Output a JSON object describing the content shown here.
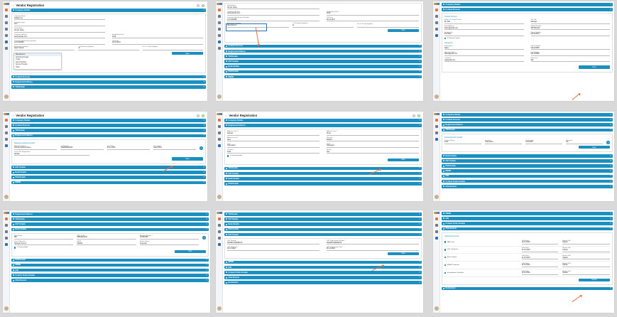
{
  "app": {
    "title": "Vendor Registration",
    "back": "‹"
  },
  "sections": {
    "company": "Company Details",
    "contact": "Contact Persons",
    "registered": "Registered Address",
    "tin": "TIN Details",
    "gst": "GST Details",
    "bank": "Bank Details",
    "pan": "PAN Details",
    "msme": "MSME",
    "cin": "CIN",
    "contact_points": "Contact Points Details",
    "attachments": "Attachments",
    "declaration": "Declaration",
    "upload": "Upload Documents",
    "vat": "VAT Details",
    "fin": "Financial Details",
    "cert": "Certifications",
    "other": "Other Details"
  },
  "company": {
    "name_label": "Company Name *",
    "name_value": "AdiEpic Ltd",
    "type_label": "Company Type *",
    "type_value": "Firm",
    "brand_label": "Brand Name",
    "brand_value": "Vendor Name",
    "website_label": "Company Website",
    "website_value": "www.website.com",
    "est_label": "Established Year *",
    "est_value": "2018",
    "corp_label": "Corporate Identification Number",
    "corp_value": "L21 8L90989",
    "cin_label": "CIN Date",
    "cin_value": "02-10-2021",
    "cat_label": "Enterprise Category *",
    "cat_value": "Select Option",
    "emp_label": "# Of Existing Suppliers",
    "emp_value": "12",
    "cert_label": "Do Or Certify Supplier",
    "save": "Save"
  },
  "dropdown": [
    "Manufacturer",
    "Authorized Dealer",
    "Trader",
    "Sole Proprietor",
    "Service Provider",
    "Other"
  ],
  "p3": {
    "contact_title": "Contact Persons",
    "rows": [
      {
        "l1": "Name Of Contact Person",
        "v1": "Mr. Rao",
        "l2": "Job Title",
        "v2": "Manager"
      },
      {
        "l1": "Email Address",
        "v1": "admin@gmail.com",
        "l2": "Mobile Number",
        "v2": "9876543210"
      },
      {
        "l1": "Designation",
        "v1": "Purchase",
        "l2": "Phone Number",
        "v2": "040 223344"
      },
      {
        "l1": "Department",
        "v1": "Sales",
        "l2": "Office Number",
        "v2": "040 223355"
      },
      {
        "l1": "Alternate Email",
        "v1": "sales@gmail.com",
        "l2": "Fax Number",
        "v2": "040 223366"
      },
      {
        "l1": "Cc Email",
        "v1": "cc@gmail.com",
        "l2": "Extension",
        "v2": "204"
      }
    ],
    "cat_title": "Categories",
    "primary": "Is Primary Contact",
    "next": "Next"
  },
  "p4": {
    "sub": "Registered Address Details",
    "name_label": "Registered Name",
    "name_value": "Primary Address Name",
    "gst_label": "Gst Number",
    "gst_value": "12ABCDE3456F",
    "start_label": "Start Date",
    "start_value": "01-01-2022",
    "desc_label": "Description",
    "desc_value": "Head Office",
    "proof_label": "Local GST Registration",
    "proof_value": "Upload",
    "save": "Save"
  },
  "p5": {
    "a1_label": "Address Line 1 *",
    "a1_value": "Address",
    "a2_label": "Address Line 2",
    "a2_value": "Street",
    "a3_label": "Address Line 3",
    "a3_value": "Area",
    "pin_label": "Pincode *",
    "pin_value": "500001",
    "city_label": "City *",
    "city_value": "Hyderabad",
    "state_label": "State *",
    "state_value": "Telangana",
    "country_label": "Country *",
    "country_value": "India",
    "dist_label": "District",
    "dist_value": "Hyd",
    "same": "Is Communication",
    "save": "Save"
  },
  "p6": {
    "sub": "Tax Registration Details",
    "t1_label": "Country Name",
    "t1_value": "India",
    "t2_label": "Location",
    "t2_value": "Hyderabad",
    "t3_label": "Tax Number",
    "t3_value": "TIN12345",
    "t4_label": "Remarks",
    "t4_value": "NA",
    "save": "Save"
  },
  "p7": {
    "holder_label": "Bank Name *",
    "holder_value": "SBI",
    "ifsc_label": "IFSC Code *",
    "ifsc_value": "SBIN0001234",
    "acc_label": "Account Number *",
    "acc_value": "123456789",
    "type_label": "Type Of Account",
    "type_value": "Savings Account",
    "micr_label": "MICR",
    "micr_value": "500002",
    "branch_label": "Branch Name *",
    "branch_value": "Ameerpet",
    "primary": "Is Primary Bank",
    "save": "Save"
  },
  "p8": {
    "gst1_label": "GST Number *",
    "gst1_value": "36AABCU9603R1ZX",
    "gst2_label": "GST Registration Number *",
    "gst2_value": "36AABCU9603R1ZX",
    "gst3_label": "GST Reg Date *",
    "gst3_value": "01-01-2020",
    "gst4_label": "GST Registration Date *",
    "gst4_value": "01-01-2020",
    "save": "Save"
  },
  "p9": {
    "sub": "Upload Documents",
    "items": [
      {
        "name": "PAN Card",
        "d": "Valid Upto",
        "dv": "12-10-2023",
        "r": "Browse File",
        "rv": "Upload"
      },
      {
        "name": "GST Certificate",
        "d": "Valid Upto",
        "dv": "12-10-2023",
        "r": "Browse File",
        "rv": "Upload"
      },
      {
        "name": "Bank Cheque",
        "d": "Valid Upto",
        "dv": "12-10-2023",
        "r": "Browse File",
        "rv": "Upload"
      },
      {
        "name": "MSME Certificate",
        "d": "Valid Upto",
        "dv": "12-10-2023",
        "r": "Browse File",
        "rv": "Upload"
      },
      {
        "name": "Incorporation Certificate",
        "d": "Valid Upto",
        "dv": "12-10-2023",
        "r": "Browse File",
        "rv": "Upload"
      }
    ],
    "submit": "Submit"
  }
}
